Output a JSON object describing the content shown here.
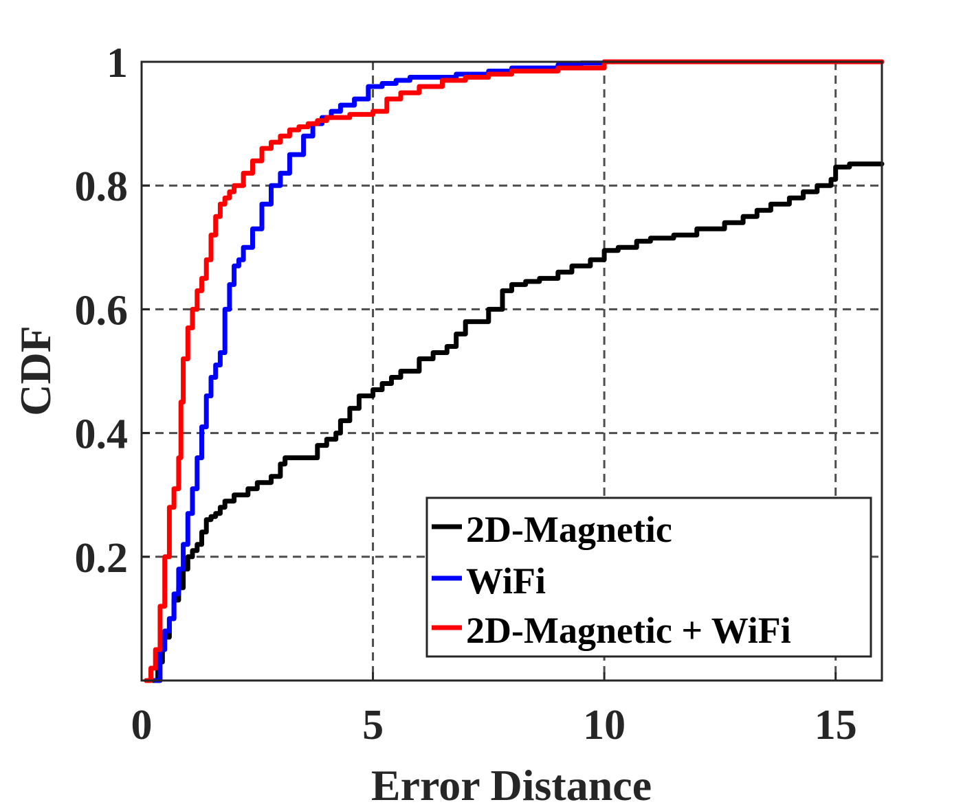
{
  "chart_data": {
    "type": "line",
    "title": "",
    "xlabel": "Error Distance",
    "ylabel": "CDF",
    "xlim": [
      0,
      16
    ],
    "ylim": [
      0,
      1
    ],
    "xticks": [
      0,
      5,
      10,
      15
    ],
    "xtick_labels": [
      "0",
      "5",
      "10",
      "15"
    ],
    "yticks": [
      0.2,
      0.4,
      0.6,
      0.8,
      1
    ],
    "ytick_labels": [
      "0.2",
      "0.4",
      "0.6",
      "0.8",
      "1"
    ],
    "grid": true,
    "legend_position": "bottom-right",
    "series": [
      {
        "name": "2D-Magnetic",
        "color": "#000000",
        "x": [
          0.25,
          0.35,
          0.45,
          0.6,
          0.7,
          0.8,
          0.9,
          1.0,
          1.1,
          1.2,
          1.3,
          1.4,
          1.5,
          1.6,
          1.7,
          1.8,
          2.0,
          2.3,
          2.5,
          2.8,
          3.0,
          3.1,
          3.3,
          3.5,
          3.8,
          4.0,
          4.2,
          4.3,
          4.5,
          4.7,
          5.0,
          5.2,
          5.4,
          5.6,
          6.0,
          6.3,
          6.6,
          6.8,
          7.0,
          7.5,
          7.8,
          8.0,
          8.3,
          8.6,
          9.0,
          9.3,
          9.7,
          10.0,
          10.3,
          10.7,
          11.0,
          11.5,
          11.7,
          12.0,
          12.3,
          12.6,
          13.0,
          13.3,
          13.6,
          14.0,
          14.3,
          14.6,
          14.9,
          15.0,
          15.3,
          16.0
        ],
        "y": [
          0.0,
          0.03,
          0.07,
          0.1,
          0.13,
          0.15,
          0.18,
          0.2,
          0.21,
          0.22,
          0.24,
          0.26,
          0.265,
          0.27,
          0.28,
          0.29,
          0.3,
          0.31,
          0.32,
          0.33,
          0.35,
          0.36,
          0.36,
          0.36,
          0.38,
          0.39,
          0.4,
          0.42,
          0.44,
          0.46,
          0.47,
          0.48,
          0.49,
          0.5,
          0.52,
          0.53,
          0.54,
          0.56,
          0.58,
          0.6,
          0.63,
          0.64,
          0.645,
          0.65,
          0.66,
          0.67,
          0.68,
          0.695,
          0.7,
          0.71,
          0.715,
          0.72,
          0.72,
          0.73,
          0.73,
          0.74,
          0.75,
          0.76,
          0.77,
          0.78,
          0.79,
          0.8,
          0.81,
          0.83,
          0.835,
          0.835
        ]
      },
      {
        "name": "WiFi",
        "color": "#0000ff",
        "x": [
          0.3,
          0.4,
          0.5,
          0.6,
          0.7,
          0.8,
          0.9,
          1.0,
          1.1,
          1.2,
          1.3,
          1.4,
          1.5,
          1.6,
          1.7,
          1.8,
          1.9,
          2.0,
          2.1,
          2.2,
          2.4,
          2.6,
          2.8,
          3.0,
          3.2,
          3.5,
          3.7,
          3.9,
          4.1,
          4.3,
          4.6,
          4.9,
          5.2,
          5.5,
          5.8,
          6.2,
          6.8,
          7.5,
          8.0,
          9.0,
          9.5,
          10.0,
          16.0
        ],
        "y": [
          0.0,
          0.05,
          0.08,
          0.1,
          0.14,
          0.18,
          0.22,
          0.27,
          0.31,
          0.36,
          0.41,
          0.46,
          0.49,
          0.51,
          0.53,
          0.6,
          0.64,
          0.67,
          0.68,
          0.7,
          0.73,
          0.77,
          0.8,
          0.82,
          0.85,
          0.88,
          0.9,
          0.91,
          0.92,
          0.93,
          0.94,
          0.96,
          0.965,
          0.97,
          0.975,
          0.975,
          0.98,
          0.985,
          0.99,
          0.995,
          0.998,
          1.0,
          1.0
        ]
      },
      {
        "name": "2D-Magnetic + WiFi",
        "color": "#ff0000",
        "x": [
          0.1,
          0.2,
          0.3,
          0.4,
          0.5,
          0.6,
          0.7,
          0.8,
          0.85,
          0.9,
          1.0,
          1.1,
          1.2,
          1.3,
          1.4,
          1.5,
          1.6,
          1.7,
          1.8,
          1.9,
          2.0,
          2.2,
          2.4,
          2.6,
          2.8,
          3.0,
          3.2,
          3.4,
          3.6,
          3.8,
          4.0,
          4.5,
          5.0,
          5.3,
          5.6,
          6.0,
          6.5,
          7.0,
          7.5,
          8.0,
          9.0,
          10.0,
          16.0
        ],
        "y": [
          0.0,
          0.02,
          0.05,
          0.12,
          0.2,
          0.28,
          0.31,
          0.36,
          0.45,
          0.52,
          0.57,
          0.6,
          0.63,
          0.65,
          0.68,
          0.72,
          0.75,
          0.77,
          0.78,
          0.79,
          0.8,
          0.82,
          0.84,
          0.86,
          0.87,
          0.88,
          0.89,
          0.895,
          0.9,
          0.905,
          0.91,
          0.915,
          0.92,
          0.94,
          0.95,
          0.96,
          0.97,
          0.975,
          0.98,
          0.985,
          0.99,
          1.0,
          1.0
        ]
      }
    ]
  }
}
